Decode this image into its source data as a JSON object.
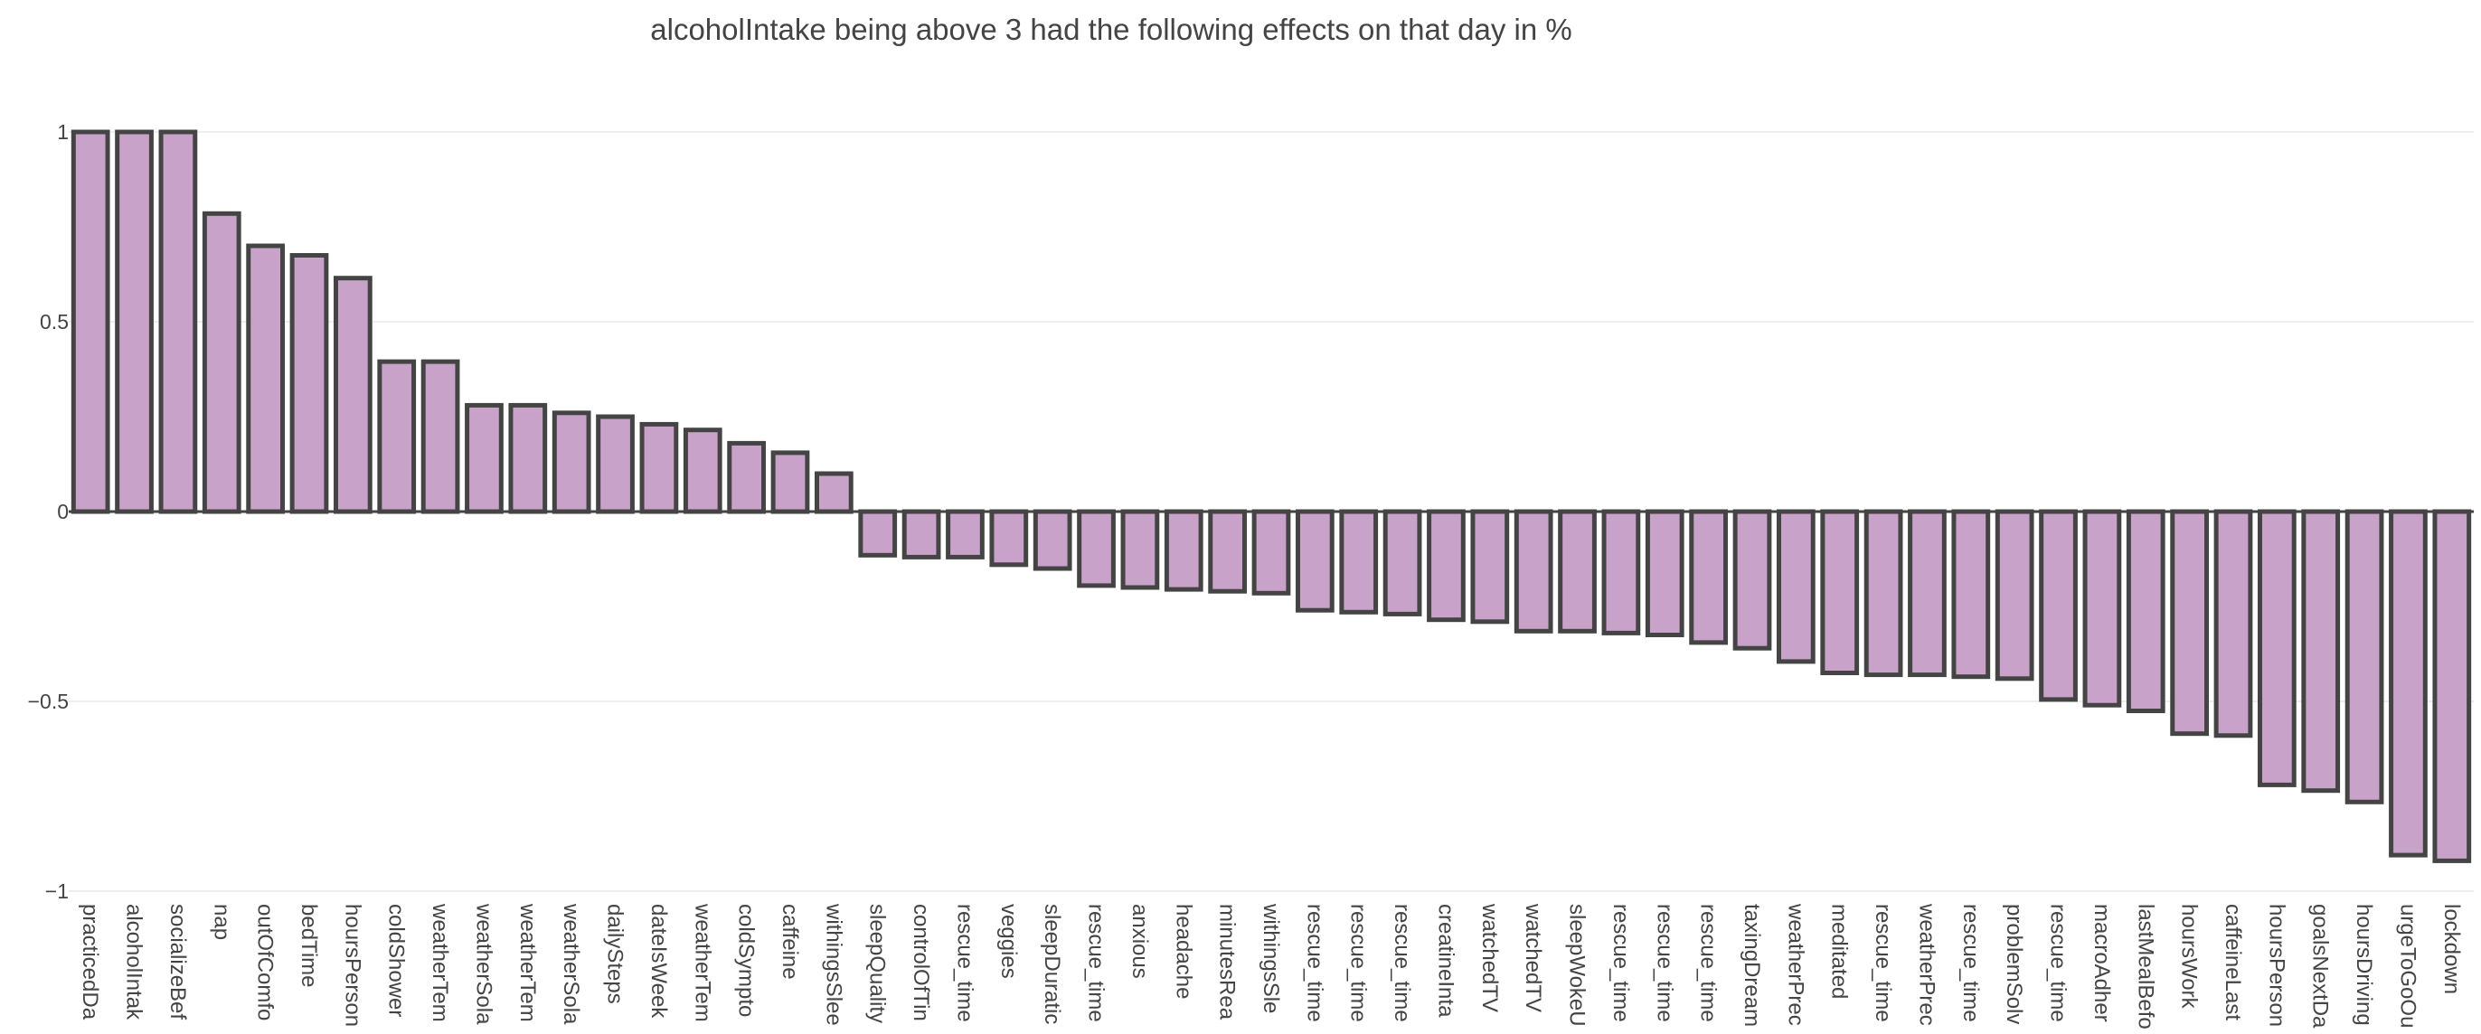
{
  "chart_data": {
    "type": "bar",
    "title": "alcoholIntake being above 3 had the following effects on that day in %",
    "xlabel": "",
    "ylabel": "",
    "ylim": [
      -1,
      1
    ],
    "yticks": [
      {
        "value": 1,
        "label": "1"
      },
      {
        "value": 0.5,
        "label": "0.5"
      },
      {
        "value": 0,
        "label": "0"
      },
      {
        "value": -0.5,
        "label": "−0.5"
      },
      {
        "value": -1,
        "label": "−1"
      }
    ],
    "grid": true,
    "bar_color": "#c8a2c8",
    "bar_outline": "#444444",
    "categories": [
      "practicedDa",
      "alcoholIntak",
      "socializeBef",
      "nap",
      "outOfComfo",
      "bedTime",
      "hoursPerson",
      "coldShower",
      "weatherTem",
      "weatherSola",
      "weatherTem",
      "weatherSola",
      "dailySteps",
      "dateIsWeek",
      "weatherTem",
      "coldSympto",
      "caffeine",
      "withingsSlee",
      "sleepQuality",
      "controlOfTin",
      "rescue_time",
      "veggies",
      "sleepDuratic",
      "rescue_time",
      "anxious",
      "headache",
      "minutesRea",
      "withingsSle",
      "rescue_time",
      "rescue_time",
      "rescue_time",
      "creatineInta",
      "watchedTV",
      "watchedTV",
      "sleepWokeU",
      "rescue_time",
      "rescue_time",
      "rescue_time",
      "taxingDream",
      "weatherPrec",
      "meditated",
      "rescue_time",
      "weatherPrec",
      "rescue_time",
      "problemSolv",
      "rescue_time",
      "macroAdher",
      "lastMealBefo",
      "hoursWork",
      "caffeineLast",
      "hoursPerson",
      "goalsNextDa",
      "hoursDriving",
      "urgeToGoOu",
      "lockdown"
    ],
    "values": [
      1.0,
      1.0,
      1.0,
      0.785,
      0.7,
      0.675,
      0.615,
      0.395,
      0.395,
      0.28,
      0.28,
      0.26,
      0.25,
      0.23,
      0.215,
      0.18,
      0.155,
      0.1,
      -0.115,
      -0.12,
      -0.12,
      -0.14,
      -0.15,
      -0.195,
      -0.2,
      -0.205,
      -0.21,
      -0.215,
      -0.26,
      -0.265,
      -0.27,
      -0.285,
      -0.29,
      -0.315,
      -0.315,
      -0.32,
      -0.325,
      -0.345,
      -0.36,
      -0.395,
      -0.425,
      -0.43,
      -0.43,
      -0.435,
      -0.44,
      -0.495,
      -0.51,
      -0.525,
      -0.585,
      -0.59,
      -0.72,
      -0.735,
      -0.765,
      -0.905,
      -0.92
    ]
  }
}
